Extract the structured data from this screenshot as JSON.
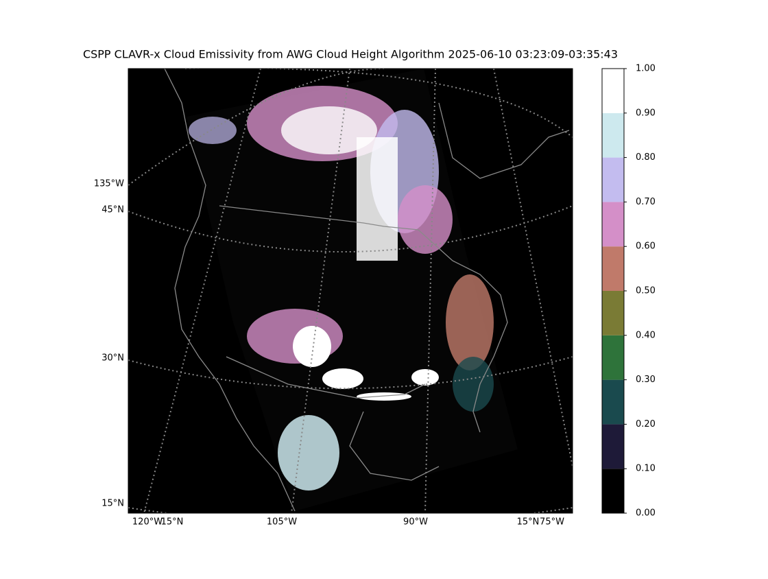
{
  "title": "CSPP CLAVR-x Cloud Emissivity from AWG Cloud Height Algorithm 2025-06-10 03:23:09-03:35:43",
  "map": {
    "left_labels": [
      "135°W",
      "45°N",
      "30°N",
      "15°N"
    ],
    "bottom_labels": [
      "120°W",
      "15°N",
      "105°W",
      "90°W",
      "15°N",
      "75°W"
    ]
  },
  "colorbar": {
    "lim": [
      0,
      1
    ],
    "ticks": [
      {
        "value": 0,
        "label": "0.00"
      },
      {
        "value": 0.1,
        "label": "0.10"
      },
      {
        "value": 0.2,
        "label": "0.20"
      },
      {
        "value": 0.3,
        "label": "0.30"
      },
      {
        "value": 0.4,
        "label": "0.40"
      },
      {
        "value": 0.5,
        "label": "0.50"
      },
      {
        "value": 0.6,
        "label": "0.60"
      },
      {
        "value": 0.7,
        "label": "0.70"
      },
      {
        "value": 0.8,
        "label": "0.80"
      },
      {
        "value": 0.9,
        "label": "0.90"
      },
      {
        "value": 1,
        "label": "1.00"
      }
    ],
    "colors": [
      "#000000",
      "#1e1a38",
      "#1a4a4e",
      "#2e733a",
      "#7a7b35",
      "#c07a6a",
      "#d48fc8",
      "#c3bcef",
      "#cde9ee",
      "#ffffff"
    ]
  }
}
